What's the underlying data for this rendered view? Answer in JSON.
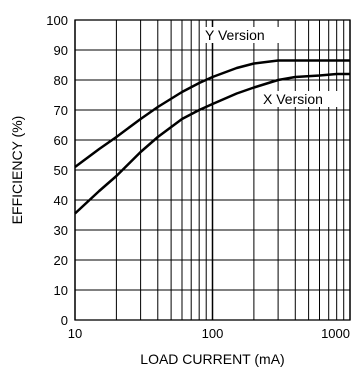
{
  "chart_data": {
    "type": "line",
    "title": "",
    "xlabel": "LOAD CURRENT (mA)",
    "ylabel": "EFFICIENCY (%)",
    "xscale": "log",
    "xlim": [
      10,
      1000
    ],
    "ylim": [
      0,
      100
    ],
    "grid": true,
    "x_ticks": [
      {
        "value": 10,
        "label": "10"
      },
      {
        "value": 100,
        "label": "100"
      },
      {
        "value": 1000,
        "label": "1000"
      }
    ],
    "y_ticks": [
      {
        "value": 0,
        "label": "0"
      },
      {
        "value": 10,
        "label": "10"
      },
      {
        "value": 20,
        "label": "20"
      },
      {
        "value": 30,
        "label": "30"
      },
      {
        "value": 40,
        "label": "40"
      },
      {
        "value": 50,
        "label": "50"
      },
      {
        "value": 60,
        "label": "60"
      },
      {
        "value": 70,
        "label": "70"
      },
      {
        "value": 80,
        "label": "80"
      },
      {
        "value": 90,
        "label": "90"
      },
      {
        "value": 100,
        "label": "100"
      }
    ],
    "series": [
      {
        "name": "Y Version",
        "x": [
          10,
          15,
          20,
          30,
          40,
          60,
          80,
          100,
          150,
          200,
          300,
          400,
          600,
          800,
          1000
        ],
        "y": [
          51,
          57,
          61,
          67,
          71,
          76,
          79,
          81,
          84,
          85.5,
          86.5,
          86.5,
          86.5,
          86.5,
          86.5
        ]
      },
      {
        "name": "X Version",
        "x": [
          10,
          15,
          20,
          30,
          40,
          60,
          80,
          100,
          150,
          200,
          300,
          400,
          600,
          800,
          1000
        ],
        "y": [
          35.5,
          43,
          48,
          56,
          61,
          67,
          70,
          72,
          75.5,
          77.5,
          80,
          81,
          81.5,
          82,
          82
        ]
      }
    ],
    "colors": {
      "line": "#000000",
      "grid": "#000000",
      "background": "#ffffff"
    }
  }
}
